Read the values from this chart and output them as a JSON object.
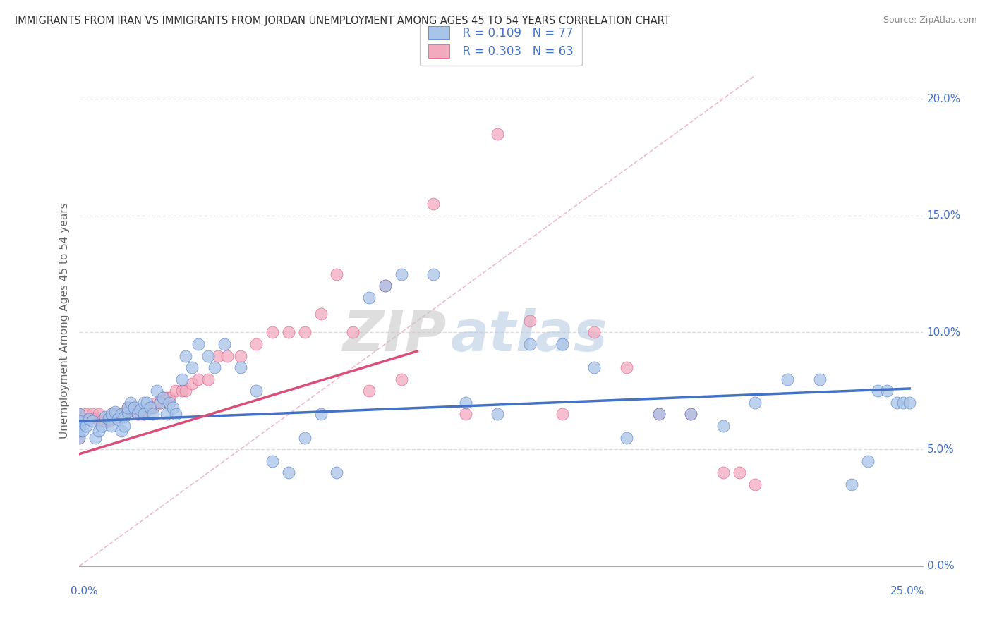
{
  "title": "IMMIGRANTS FROM IRAN VS IMMIGRANTS FROM JORDAN UNEMPLOYMENT AMONG AGES 45 TO 54 YEARS CORRELATION CHART",
  "source": "Source: ZipAtlas.com",
  "ylabel": "Unemployment Among Ages 45 to 54 years",
  "ymin": 0.0,
  "ymax": 0.21,
  "xmin": 0.0,
  "xmax": 0.262,
  "iran_color": "#a8c4e8",
  "jordan_color": "#f2aabf",
  "iran_line_color": "#4472c4",
  "jordan_line_color": "#d94f7a",
  "diag_line_color": "#e8aabb",
  "legend_R_iran": "R = 0.109",
  "legend_N_iran": "N = 77",
  "legend_R_jordan": "R = 0.303",
  "legend_N_jordan": "N = 63",
  "iran_scatter_x": [
    0.0,
    0.0,
    0.0,
    0.0,
    0.0,
    0.001,
    0.002,
    0.003,
    0.004,
    0.005,
    0.006,
    0.007,
    0.008,
    0.009,
    0.01,
    0.01,
    0.011,
    0.012,
    0.013,
    0.013,
    0.014,
    0.014,
    0.015,
    0.015,
    0.016,
    0.017,
    0.018,
    0.019,
    0.02,
    0.02,
    0.021,
    0.022,
    0.023,
    0.024,
    0.025,
    0.026,
    0.027,
    0.028,
    0.029,
    0.03,
    0.032,
    0.033,
    0.035,
    0.037,
    0.04,
    0.042,
    0.045,
    0.05,
    0.055,
    0.06,
    0.065,
    0.07,
    0.075,
    0.08,
    0.09,
    0.095,
    0.1,
    0.11,
    0.12,
    0.13,
    0.14,
    0.15,
    0.16,
    0.17,
    0.18,
    0.19,
    0.2,
    0.21,
    0.22,
    0.23,
    0.24,
    0.245,
    0.248,
    0.251,
    0.254,
    0.256,
    0.258
  ],
  "iran_scatter_y": [
    0.06,
    0.055,
    0.065,
    0.058,
    0.062,
    0.058,
    0.06,
    0.063,
    0.062,
    0.055,
    0.058,
    0.06,
    0.064,
    0.063,
    0.065,
    0.06,
    0.066,
    0.063,
    0.065,
    0.058,
    0.064,
    0.06,
    0.066,
    0.068,
    0.07,
    0.068,
    0.065,
    0.067,
    0.07,
    0.065,
    0.07,
    0.068,
    0.065,
    0.075,
    0.07,
    0.072,
    0.065,
    0.07,
    0.068,
    0.065,
    0.08,
    0.09,
    0.085,
    0.095,
    0.09,
    0.085,
    0.095,
    0.085,
    0.075,
    0.045,
    0.04,
    0.055,
    0.065,
    0.04,
    0.115,
    0.12,
    0.125,
    0.125,
    0.07,
    0.065,
    0.095,
    0.095,
    0.085,
    0.055,
    0.065,
    0.065,
    0.06,
    0.07,
    0.08,
    0.08,
    0.035,
    0.045,
    0.075,
    0.075,
    0.07,
    0.07,
    0.07
  ],
  "jordan_scatter_x": [
    0.0,
    0.0,
    0.0,
    0.001,
    0.002,
    0.003,
    0.004,
    0.005,
    0.006,
    0.007,
    0.008,
    0.009,
    0.01,
    0.011,
    0.012,
    0.013,
    0.014,
    0.015,
    0.015,
    0.016,
    0.017,
    0.018,
    0.019,
    0.02,
    0.021,
    0.022,
    0.023,
    0.024,
    0.025,
    0.026,
    0.027,
    0.028,
    0.03,
    0.032,
    0.033,
    0.035,
    0.037,
    0.04,
    0.043,
    0.046,
    0.05,
    0.055,
    0.06,
    0.065,
    0.07,
    0.075,
    0.08,
    0.085,
    0.09,
    0.095,
    0.1,
    0.11,
    0.12,
    0.13,
    0.14,
    0.15,
    0.16,
    0.17,
    0.18,
    0.19,
    0.2,
    0.205,
    0.21
  ],
  "jordan_scatter_y": [
    0.065,
    0.06,
    0.055,
    0.063,
    0.065,
    0.063,
    0.065,
    0.063,
    0.065,
    0.062,
    0.062,
    0.062,
    0.065,
    0.065,
    0.064,
    0.065,
    0.065,
    0.066,
    0.068,
    0.068,
    0.068,
    0.065,
    0.065,
    0.065,
    0.068,
    0.068,
    0.068,
    0.07,
    0.07,
    0.072,
    0.072,
    0.072,
    0.075,
    0.075,
    0.075,
    0.078,
    0.08,
    0.08,
    0.09,
    0.09,
    0.09,
    0.095,
    0.1,
    0.1,
    0.1,
    0.108,
    0.125,
    0.1,
    0.075,
    0.12,
    0.08,
    0.155,
    0.065,
    0.185,
    0.105,
    0.065,
    0.1,
    0.085,
    0.065,
    0.065,
    0.04,
    0.04,
    0.035
  ],
  "watermark_zip": "ZIP",
  "watermark_atlas": "atlas",
  "background_color": "#ffffff",
  "grid_color": "#dddddd"
}
